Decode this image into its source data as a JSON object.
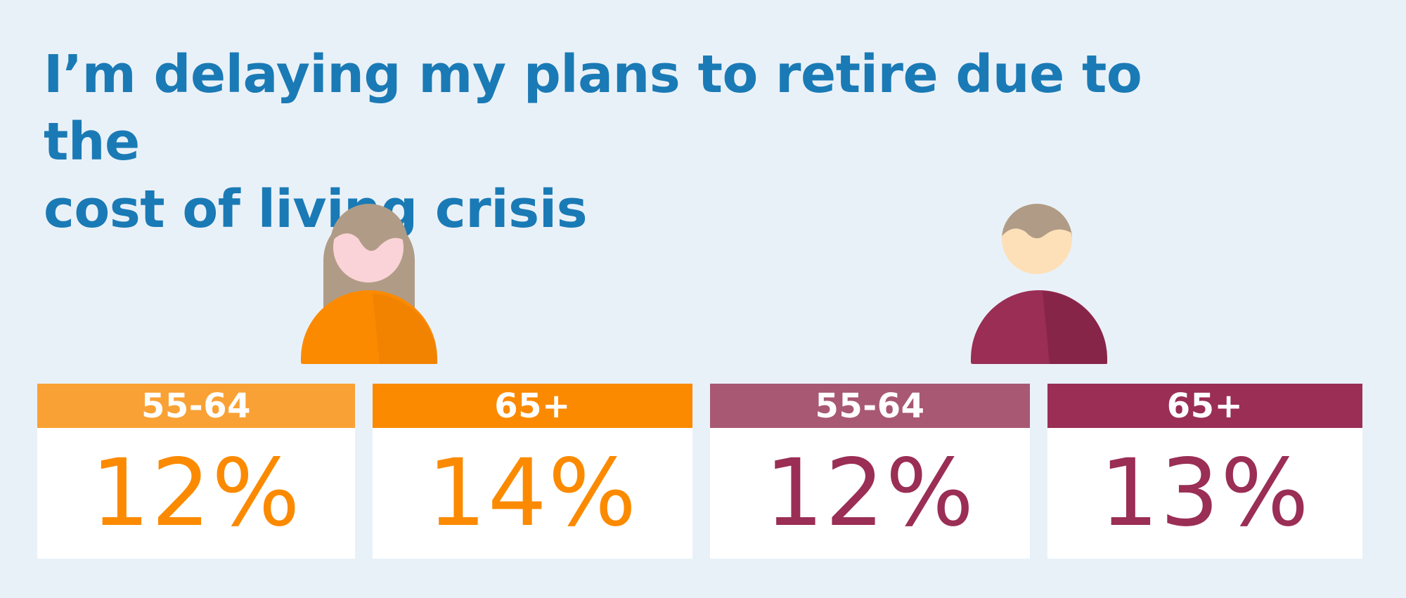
{
  "title_lines": [
    "I’m delaying my plans to retire due to the",
    "cost of living crisis"
  ],
  "colors": {
    "background": "#e9f1f8",
    "title": "#1a7ab5",
    "women_light": "#f9a134",
    "women_dark": "#fb8a00",
    "men_light": "#a85873",
    "men_dark": "#9a2e55"
  },
  "figures": [
    {
      "name": "woman-figure",
      "body_color": "#fb8a00",
      "hair_color": "#b09c86",
      "face_color": "#fad3d8"
    },
    {
      "name": "man-figure",
      "body_color": "#9a2e55",
      "hair_color": "#b09c86",
      "face_color": "#fde0b8"
    }
  ],
  "chart_data": {
    "type": "table",
    "title": "I’m delaying my plans to retire due to the cost of living crisis",
    "categories": [
      "55-64",
      "65+",
      "55-64",
      "65+"
    ],
    "values": [
      12,
      14,
      12,
      13
    ],
    "labels": [
      "12%",
      "14%",
      "12%",
      "13%"
    ],
    "unit": "%",
    "colors": [
      "#f9a134",
      "#fb8a00",
      "#a85873",
      "#9a2e55"
    ],
    "value_colors": [
      "#fb8a00",
      "#fb8a00",
      "#9a2e55",
      "#9a2e55"
    ]
  }
}
